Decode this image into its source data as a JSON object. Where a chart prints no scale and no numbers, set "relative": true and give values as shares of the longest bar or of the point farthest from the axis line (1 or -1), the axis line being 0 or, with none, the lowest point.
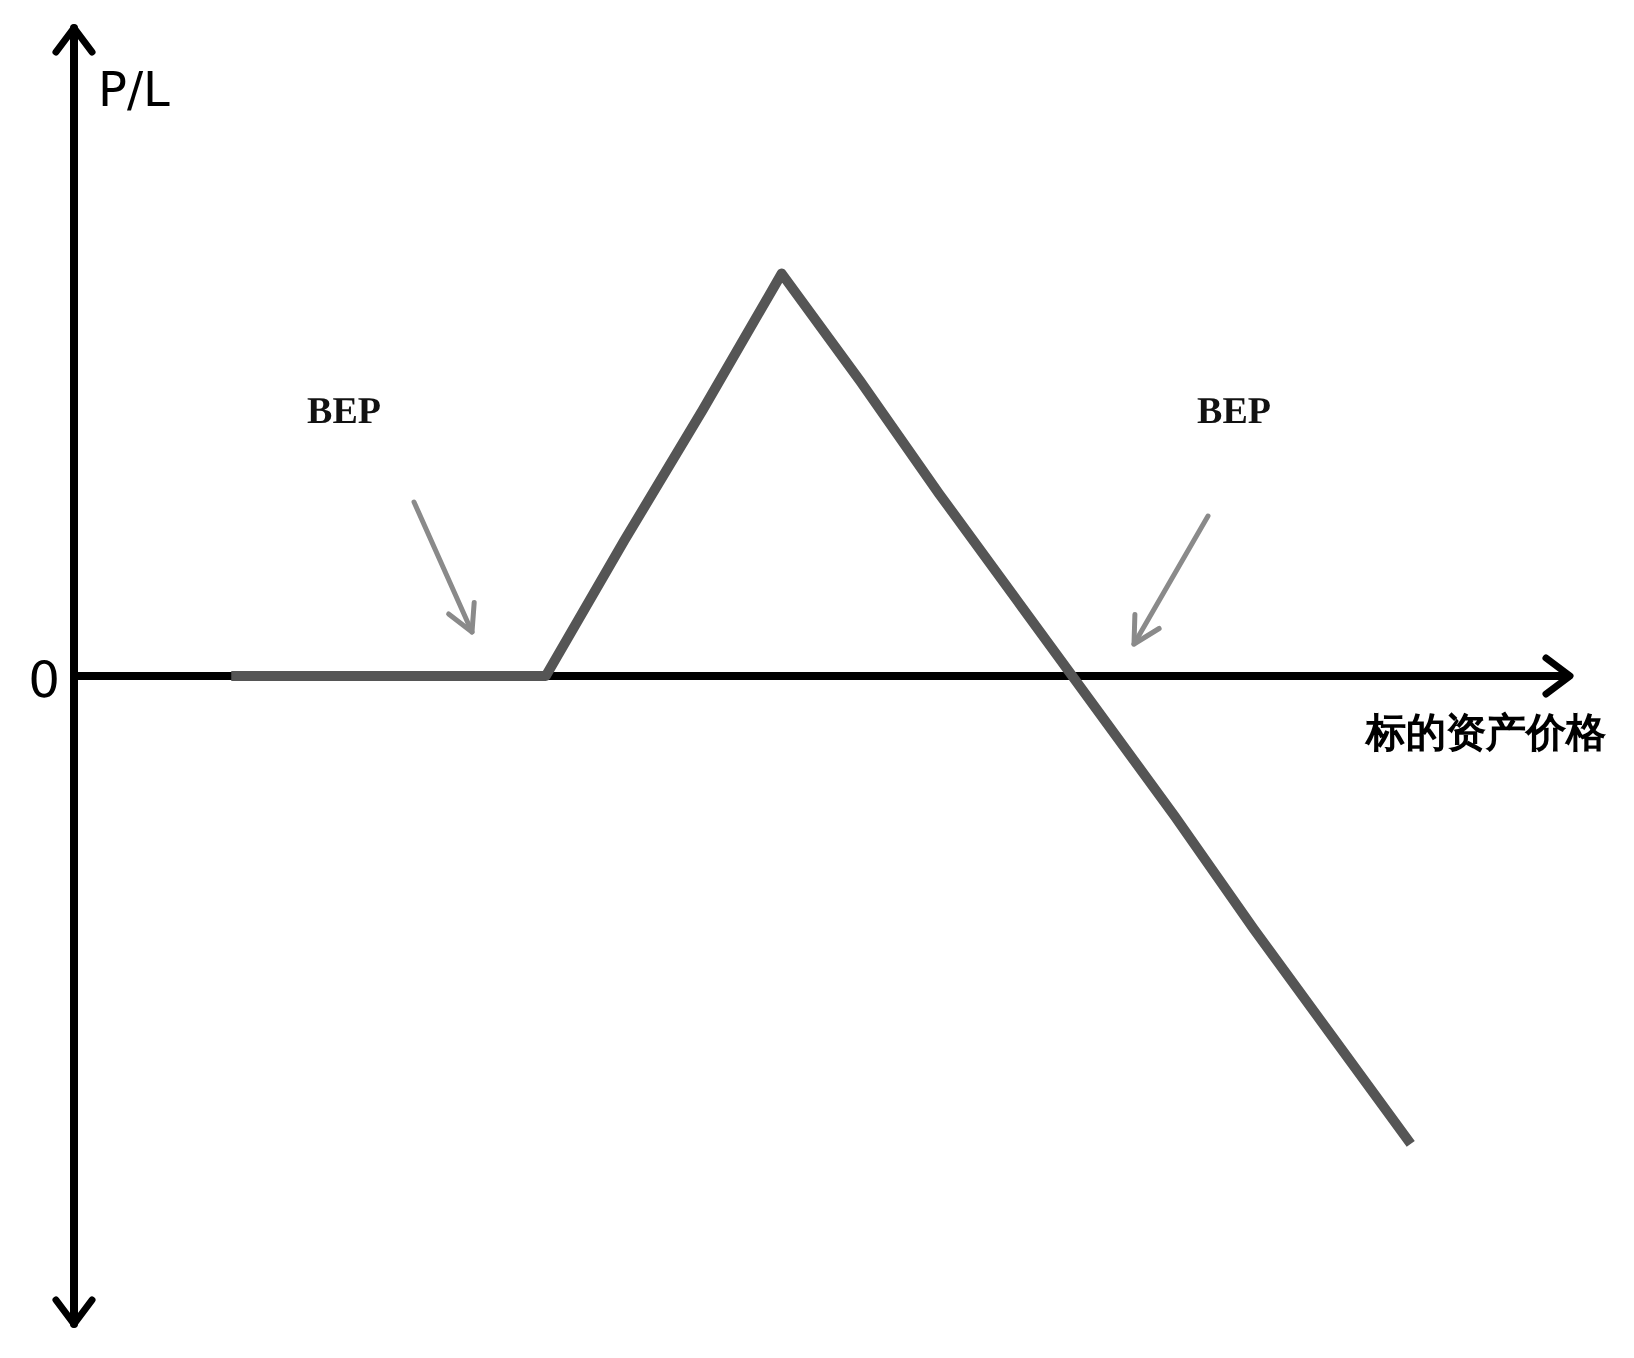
{
  "chart_data": {
    "type": "line",
    "relative": true,
    "xlabel": "标的资产价格",
    "ylabel": "P/L",
    "categories": [
      null,
      null,
      null,
      null,
      null,
      null,
      null,
      null,
      null,
      null,
      null,
      null,
      null,
      null,
      null,
      null,
      null,
      null,
      null,
      null
    ],
    "values": [
      null,
      null,
      0,
      0,
      0,
      0,
      0,
      0.29,
      0.57,
      0.86,
      0.63,
      0.39,
      0.16,
      -0.07,
      -0.3,
      -0.54,
      -0.77,
      -1,
      null,
      null
    ],
    "color": "#555555",
    "annotations": [
      "BEP",
      "BEP",
      "0"
    ]
  }
}
